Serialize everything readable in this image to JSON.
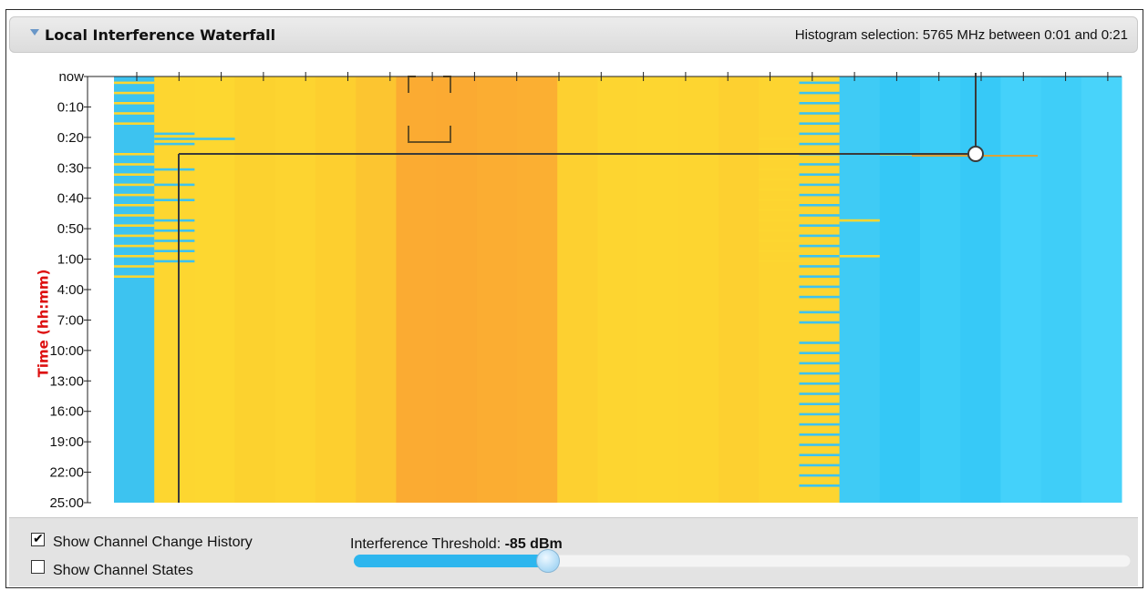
{
  "header": {
    "title": "Local Interference Waterfall",
    "selection_text": "Histogram selection: 5765 MHz between 0:01 and 0:21",
    "toggle_icon": "triangle-down-icon"
  },
  "axis": {
    "ylabel": "Time (hh:mm)",
    "yticks": [
      "now",
      "0:10",
      "0:20",
      "0:30",
      "0:40",
      "0:50",
      "1:00",
      "4:00",
      "7:00",
      "10:00",
      "13:00",
      "16:00",
      "19:00",
      "22:00",
      "25:00"
    ]
  },
  "channels": [
    {
      "color": "#3dc3f0"
    },
    {
      "color": "#fdd630"
    },
    {
      "color": "#fdd730"
    },
    {
      "color": "#fcd22f"
    },
    {
      "color": "#fdd430"
    },
    {
      "color": "#fdcf2f"
    },
    {
      "color": "#fcc530"
    },
    {
      "color": "#fbab32"
    },
    {
      "color": "#fbaa32"
    },
    {
      "color": "#fbad32"
    },
    {
      "color": "#fbaf32"
    },
    {
      "color": "#fdd030"
    },
    {
      "color": "#fdd530"
    },
    {
      "color": "#fdd630"
    },
    {
      "color": "#fdd530"
    },
    {
      "color": "#fdd030"
    },
    {
      "color": "#fdd430"
    },
    {
      "color": "#fdd530"
    },
    {
      "color": "#3fcbf5"
    },
    {
      "color": "#35c8f6"
    },
    {
      "color": "#3dcdf7"
    },
    {
      "color": "#37c9f7"
    },
    {
      "color": "#44d1fa"
    },
    {
      "color": "#3fcef8"
    },
    {
      "color": "#48d3fa"
    }
  ],
  "colors": {
    "stripe": "#fdd630",
    "stripe_blue": "#3dc3f0",
    "selection_line": "#3a3a3a",
    "thumb_border": "#8ab6d4",
    "slider_fill": "#2db6ee"
  },
  "controls": {
    "show_history_label": "Show Channel Change History",
    "show_history_checked": true,
    "show_states_label": "Show Channel States",
    "show_states_checked": false,
    "threshold_label": "Interference Threshold:",
    "threshold_value": "-85 dBm",
    "threshold_fraction": 0.25
  }
}
